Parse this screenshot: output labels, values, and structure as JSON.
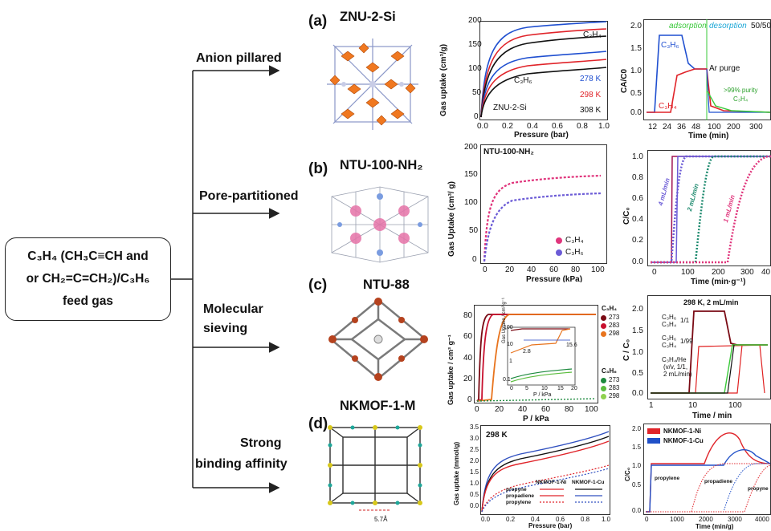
{
  "feed": {
    "line1": "C₃H₄ (CH₃C≡CH and",
    "line2": "or CH₂=C=CH₂)/C₃H₆",
    "line3": "feed gas"
  },
  "branches": [
    {
      "label": "Anion pillared",
      "letter": "(a)",
      "material": "ZNU-2-Si"
    },
    {
      "label": "Pore-partitioned",
      "letter": "(b)",
      "material": "NTU-100-NH₂"
    },
    {
      "label": "Molecular",
      "label2": "sieving",
      "letter": "(c)",
      "material": "NTU-88"
    },
    {
      "label": "Strong",
      "label2": "binding affinity",
      "letter": "(d)",
      "material": "NKMOF-1-M"
    }
  ],
  "panel_a": {
    "iso": {
      "ylabel": "Gas uptake (cm³/g)",
      "xlabel": "Pressure (bar)",
      "xticks": [
        "0.0",
        "0.2",
        "0.4",
        "0.6",
        "0.8",
        "1.0"
      ],
      "yticks": [
        "0",
        "50",
        "100",
        "150",
        "200"
      ],
      "legend": [
        "278 K",
        "298 K",
        "308 K"
      ],
      "c3h4": "C₃H₄",
      "c3h6": "C₃H₆",
      "name": "ZNU-2-Si"
    },
    "bt": {
      "ylabel": "CA/C0",
      "xlabel": "Time (min)",
      "xticks": [
        "12",
        "24",
        "36",
        "48",
        "100",
        "200",
        "300"
      ],
      "yticks": [
        "0.0",
        "0.5",
        "1.0",
        "1.5",
        "2.0"
      ],
      "adsorption": "adsorption",
      "desorption": "desorption",
      "ratio": "50/50",
      "c3h6": "C₃H₆",
      "c3h4": "C₃H₄",
      "purge": "Ar purge",
      "purity": ">99% purity",
      "purity2": "C₃H₄"
    }
  },
  "panel_b": {
    "iso": {
      "title": "NTU-100-NH₂",
      "ylabel": "Gas Uptake (cm³/ g)",
      "xlabel": "Pressure (kPa)",
      "xticks": [
        "0",
        "20",
        "40",
        "60",
        "80",
        "100"
      ],
      "yticks": [
        "0",
        "50",
        "100",
        "150",
        "200"
      ],
      "legend": [
        "C₃H₄",
        "C₃H₆"
      ]
    },
    "bt": {
      "ylabel": "C/C₀",
      "xlabel": "Time (min·g⁻¹)",
      "xticks": [
        "0",
        "100",
        "200",
        "300",
        "40"
      ],
      "yticks": [
        "0.0",
        "0.2",
        "0.4",
        "0.6",
        "0.8",
        "1.0"
      ],
      "labels": [
        "4 mL/min",
        "2 mL/min",
        "1 mL/min"
      ]
    }
  },
  "panel_c": {
    "iso": {
      "ylabel": "Gas uptake / cm³ g⁻¹",
      "xlabel": "P / kPa",
      "xticks": [
        "0",
        "20",
        "40",
        "60",
        "80",
        "100"
      ],
      "yticks": [
        "0",
        "20",
        "40",
        "60",
        "80"
      ],
      "legend_title1": "C₃H₄",
      "legend_t1": [
        "273",
        "283",
        "298"
      ],
      "legend_title2": "C₃H₆",
      "legend_t2": [
        "273",
        "283",
        "298"
      ],
      "inset_ylabel": "Gas Uptake / cm³ g⁻¹",
      "inset_xlabel": "P / kPa",
      "inset_yticks": [
        "100",
        "10",
        "1",
        "0.1"
      ],
      "inset_xticks": [
        "0",
        "5",
        "10",
        "15",
        "20"
      ],
      "inset_v1": "2.8",
      "inset_v2": "15.6"
    },
    "bt": {
      "title": "298 K, 2 mL/min",
      "ylabel": "C / C₀",
      "xlabel": "Time / min",
      "xticks": [
        "1",
        "10",
        "100"
      ],
      "yticks": [
        "0.0",
        "0.5",
        "1.0",
        "1.5",
        "2.0"
      ],
      "leg1a": "C₃H₆",
      "leg1b": "C₃H₄",
      "ratio1": "1/1",
      "leg2a": "C₃H₆",
      "leg2b": "C₃H₄",
      "ratio2": "1/99",
      "leg3": "C₃H₄/He",
      "leg3b": "(v/v, 1/1,",
      "leg3c": "2 mL/min)"
    }
  },
  "panel_d": {
    "scale": "5.7Å",
    "iso": {
      "temp": "298 K",
      "ylabel": "Gas uptake (mmol/g)",
      "xlabel": "Pressure (bar)",
      "xticks": [
        "0.0",
        "0.2",
        "0.4",
        "0.6",
        "0.8",
        "1.0"
      ],
      "yticks": [
        "0.0",
        "0.5",
        "1.0",
        "1.5",
        "2.0",
        "2.5",
        "3.0",
        "3.5"
      ],
      "col1": "NKMOF-1-Ni",
      "col2": "NKMOF-1-Cu",
      "rows": [
        "propyne",
        "propadiene",
        "propylene"
      ]
    },
    "bt": {
      "ylabel": "C/C₀",
      "xlabel": "Time (min/g)",
      "xticks": [
        "0",
        "1000",
        "2000",
        "3000",
        "4000"
      ],
      "yticks": [
        "0.0",
        "0.5",
        "1.0",
        "1.5",
        "2.0"
      ],
      "leg": [
        "NKMOF-1-Ni",
        "NKMOF-1-Cu"
      ],
      "labels": [
        "propylene",
        "propadiene",
        "propyne"
      ]
    }
  },
  "colors": {
    "orange": "#e8741e",
    "pink": "#e0357c",
    "purple": "#6b5bd6",
    "green": "#1d8a6e",
    "blue": "#1f4fd0",
    "red": "#e0242a",
    "black": "#111111",
    "darkred": "#7a0a14",
    "lightgreen": "#3ac93a"
  }
}
